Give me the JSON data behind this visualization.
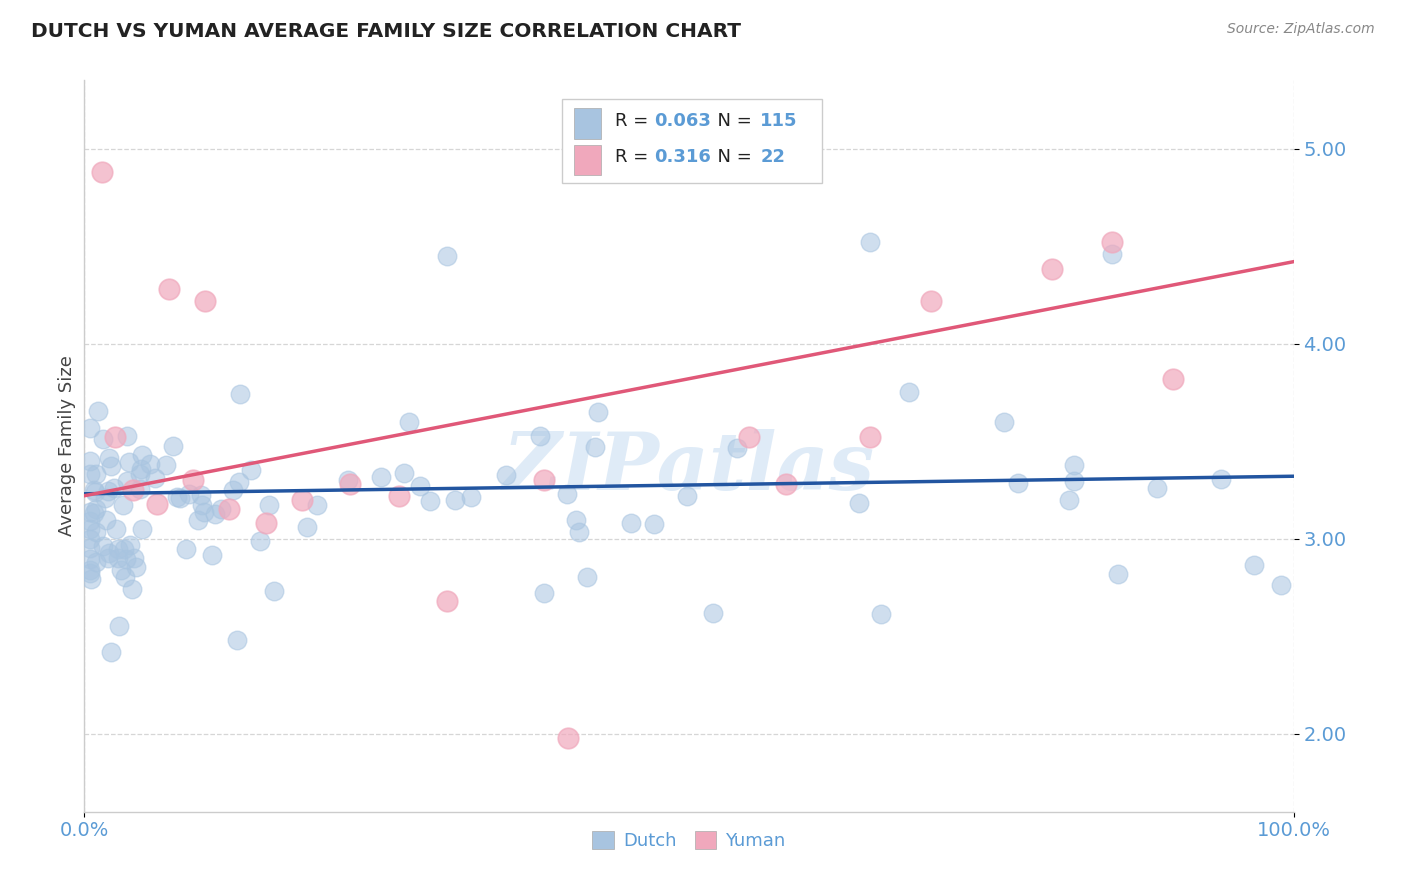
{
  "title": "DUTCH VS YUMAN AVERAGE FAMILY SIZE CORRELATION CHART",
  "source_text": "Source: ZipAtlas.com",
  "ylabel": "Average Family Size",
  "xlim": [
    0.0,
    1.0
  ],
  "ylim": [
    1.6,
    5.35
  ],
  "yticks": [
    2.0,
    3.0,
    4.0,
    5.0
  ],
  "xticks": [
    0.0,
    1.0
  ],
  "xticklabels": [
    "0.0%",
    "100.0%"
  ],
  "dutch_color": "#a8c4e0",
  "yuman_color": "#f0a8bc",
  "dutch_line_color": "#2255a0",
  "yuman_line_color": "#e05878",
  "dutch_R": 0.063,
  "dutch_N": 115,
  "yuman_R": 0.316,
  "yuman_N": 22,
  "legend_label_dutch": "Dutch",
  "legend_label_yuman": "Yuman",
  "watermark": "ZIPatlas",
  "background_color": "#ffffff",
  "grid_color": "#cccccc",
  "title_color": "#222222",
  "axis_color": "#5b9bd5",
  "legend_text_color": "#5b9bd5"
}
